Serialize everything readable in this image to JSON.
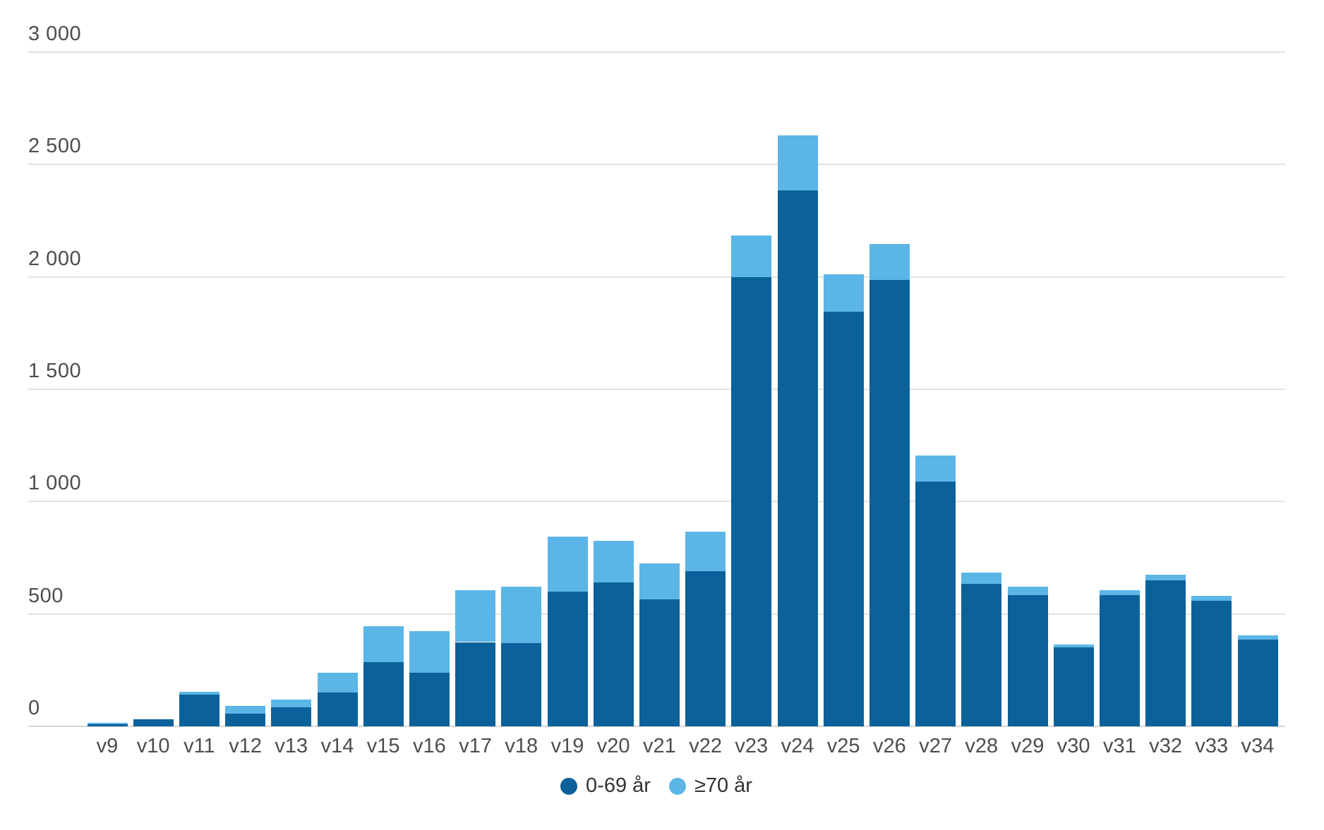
{
  "chart_data": {
    "type": "bar",
    "stacked": true,
    "title": "",
    "xlabel": "",
    "ylabel": "",
    "categories": [
      "v9",
      "v10",
      "v11",
      "v12",
      "v13",
      "v14",
      "v15",
      "v16",
      "v17",
      "v18",
      "v19",
      "v20",
      "v21",
      "v22",
      "v23",
      "v24",
      "v25",
      "v26",
      "v27",
      "v28",
      "v29",
      "v30",
      "v31",
      "v32",
      "v33",
      "v34"
    ],
    "series": [
      {
        "name": "0-69 år",
        "key": "age-0-69",
        "color": "#0b6199",
        "values": [
          10,
          30,
          140,
          55,
          85,
          150,
          285,
          240,
          375,
          370,
          600,
          640,
          565,
          690,
          2000,
          2385,
          1845,
          1985,
          1090,
          635,
          585,
          350,
          585,
          650,
          560,
          385
        ]
      },
      {
        "name": "≥70 år",
        "key": "age-70-plus",
        "color": "#5bb5e6",
        "values": [
          5,
          0,
          15,
          35,
          35,
          90,
          160,
          185,
          230,
          250,
          245,
          185,
          160,
          175,
          185,
          245,
          165,
          160,
          115,
          50,
          35,
          15,
          20,
          25,
          20,
          20
        ]
      }
    ],
    "ylim": [
      0,
      3000
    ],
    "yticks": [
      0,
      500,
      1000,
      1500,
      2000,
      2500,
      3000
    ],
    "ytick_labels": [
      "0",
      "500",
      "1 000",
      "1 500",
      "2 000",
      "2 500",
      "3 000"
    ],
    "grid": "horizontal",
    "legend_position": "bottom-center"
  },
  "colors": {
    "grid": "#e2e2e2",
    "axis_text": "#4d4d4d",
    "background": "#ffffff"
  }
}
